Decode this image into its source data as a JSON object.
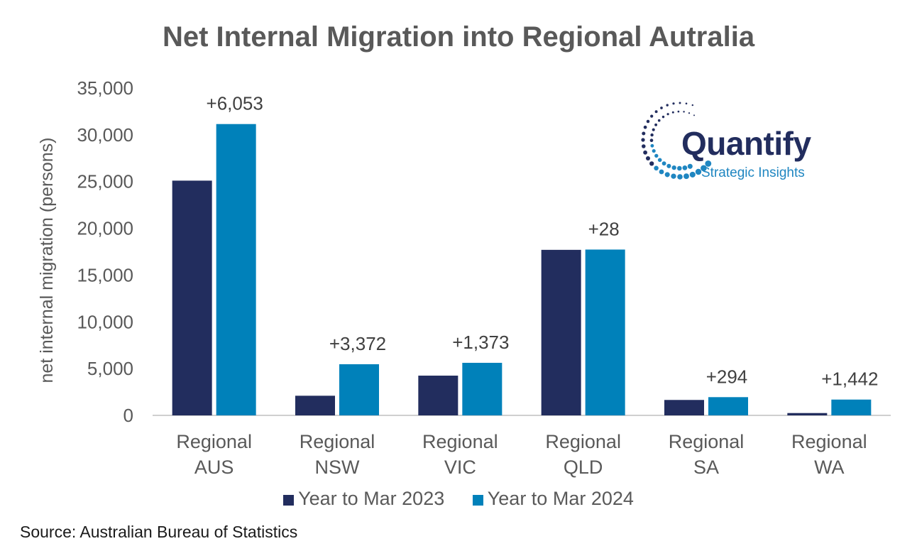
{
  "chart_data": {
    "type": "bar",
    "title": "Net Internal Migration into Regional Autralia",
    "ylabel": "net internal migration (persons)",
    "xlabel": "",
    "ylim": [
      0,
      35000
    ],
    "yticks": [
      0,
      5000,
      10000,
      15000,
      20000,
      25000,
      30000,
      35000
    ],
    "ytick_labels": [
      "0",
      "5,000",
      "10,000",
      "15,000",
      "20,000",
      "25,000",
      "30,000",
      "35,000"
    ],
    "grid": false,
    "legend_position": "bottom",
    "categories": [
      [
        "Regional",
        "AUS"
      ],
      [
        "Regional",
        "NSW"
      ],
      [
        "Regional",
        "VIC"
      ],
      [
        "Regional",
        "QLD"
      ],
      [
        "Regional",
        "SA"
      ],
      [
        "Regional",
        "WA"
      ]
    ],
    "series": [
      {
        "name": "Year to Mar 2023",
        "color": "#222d5e",
        "values": [
          25100,
          2100,
          4250,
          17700,
          1650,
          250
        ]
      },
      {
        "name": "Year to Mar 2024",
        "color": "#0081ba",
        "values": [
          31150,
          5470,
          5620,
          17730,
          1950,
          1690
        ]
      }
    ],
    "annotations": [
      "+6,053",
      "+3,372",
      "+1,373",
      "+28",
      "+294",
      "+1,442"
    ]
  },
  "logo": {
    "name": "Quantify",
    "tagline": "Strategic Insights",
    "colors": {
      "dark": "#222d5e",
      "light": "#1f86c1"
    }
  },
  "source": "Source: Australian Bureau of Statistics"
}
